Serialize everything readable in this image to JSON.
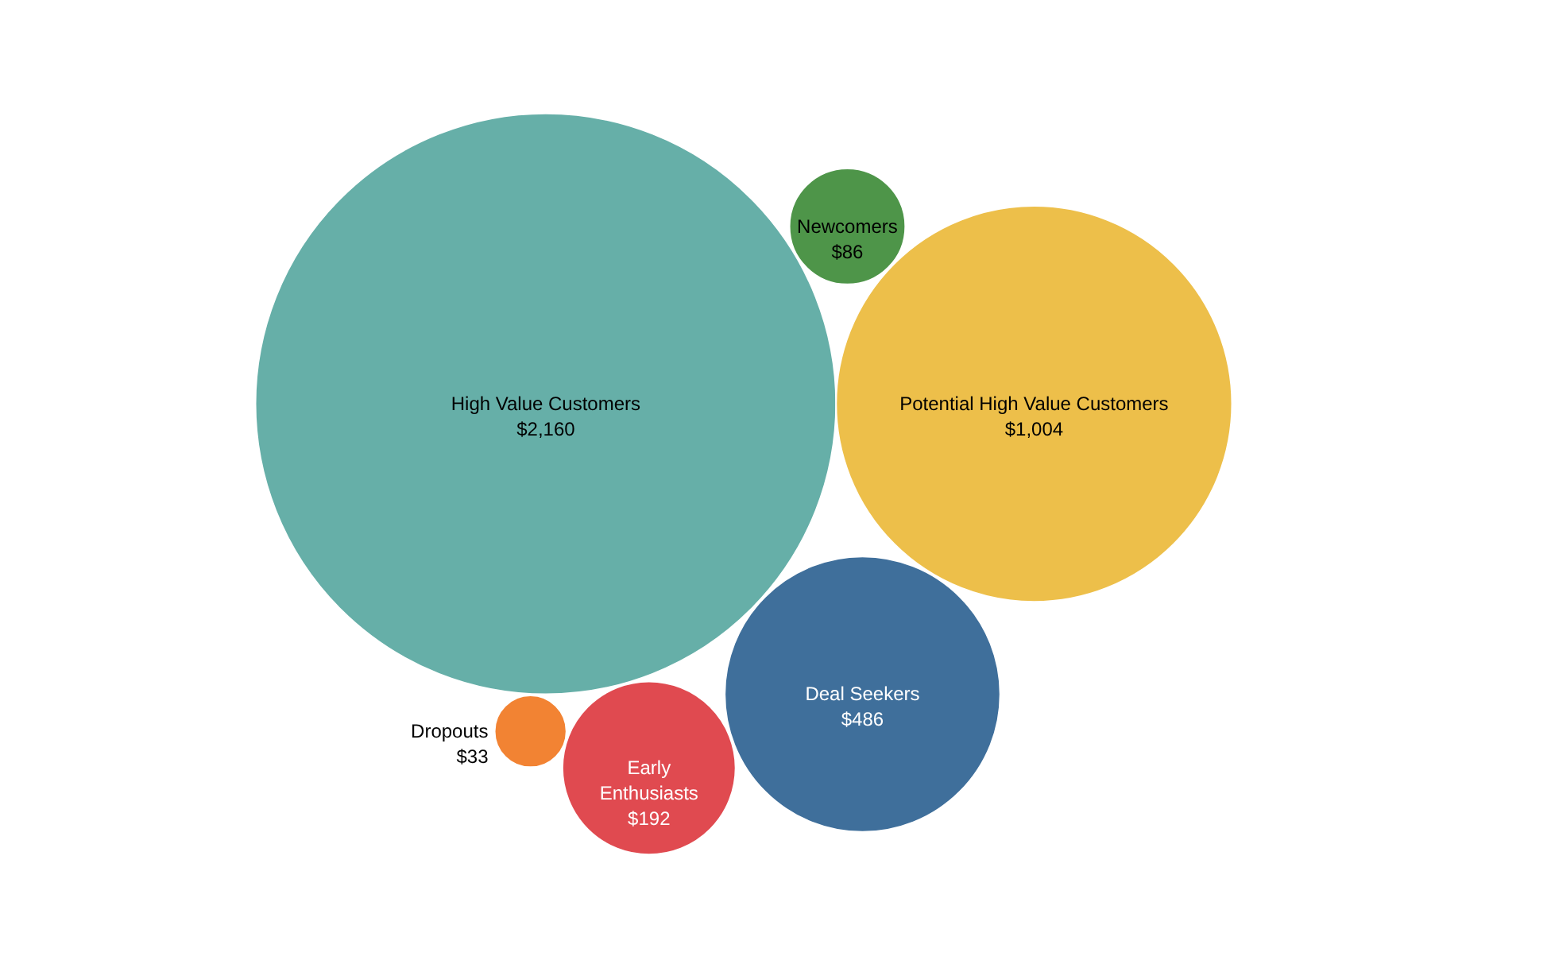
{
  "chart_data": {
    "type": "other",
    "categories": [
      "High Value Customers",
      "Potential High Value Customers",
      "Deal Seekers",
      "Early Enthusiasts",
      "Newcomers",
      "Dropouts"
    ],
    "values": [
      2160,
      1004,
      486,
      192,
      86,
      33
    ],
    "value_labels": [
      "$2,160",
      "$1,004",
      "$486",
      "$192",
      "$86",
      "$33"
    ],
    "colors": [
      "#66afa8",
      "#edbf4a",
      "#3f6f9b",
      "#e04a50",
      "#4e9549",
      "#f28333"
    ]
  }
}
